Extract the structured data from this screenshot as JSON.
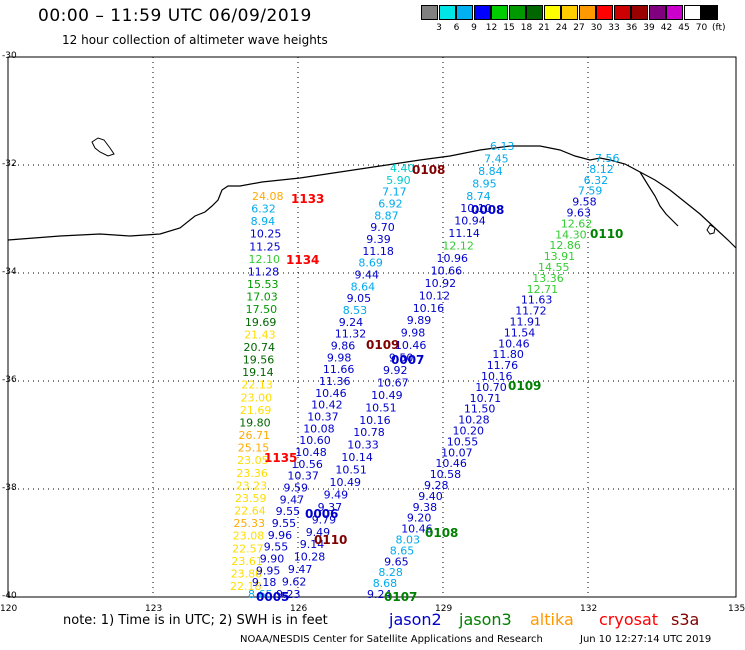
{
  "header": {
    "title": "00:00 – 11:59 UTC 06/09/2019",
    "subtitle": "12 hour collection of altimeter wave heights"
  },
  "color_scale": {
    "units": "(ft)",
    "colors": [
      "#808080",
      "#00e5e5",
      "#00b0f0",
      "#0000ff",
      "#00cc00",
      "#009900",
      "#006600",
      "#ffff00",
      "#ffcc00",
      "#ff9900",
      "#ff0000",
      "#cc0000",
      "#990000",
      "#800080",
      "#cc00cc",
      "#ffffff",
      "#000000"
    ],
    "labels": [
      "3",
      "6",
      "9",
      "12",
      "15",
      "18",
      "21",
      "24",
      "27",
      "30",
      "33",
      "36",
      "39",
      "42",
      "45",
      "70"
    ]
  },
  "axes": {
    "lat_labels": [
      "-30",
      "-32",
      "-34",
      "-36",
      "-38",
      "-40"
    ],
    "lon_labels": [
      "120",
      "123",
      "126",
      "129",
      "132",
      "135"
    ]
  },
  "time_labels": [
    {
      "text": "1133",
      "color": "#ff0000"
    },
    {
      "text": "1134",
      "color": "#ff0000"
    },
    {
      "text": "1135",
      "color": "#ff0000"
    },
    {
      "text": "0108",
      "color": "#800000"
    },
    {
      "text": "0109",
      "color": "#800000"
    },
    {
      "text": "0110",
      "color": "#800000"
    },
    {
      "text": "0008",
      "color": "#0000cc"
    },
    {
      "text": "0007",
      "color": "#0000cc"
    },
    {
      "text": "0006",
      "color": "#0000cc"
    },
    {
      "text": "0005",
      "color": "#0000cc"
    },
    {
      "text": "0110",
      "color": "#008000"
    },
    {
      "text": "0109",
      "color": "#008000"
    },
    {
      "text": "0108",
      "color": "#008000"
    },
    {
      "text": "0107",
      "color": "#008000"
    }
  ],
  "tracks": {
    "cryosat": [
      "24.08",
      "6.32",
      "8.94",
      "10.25",
      "11.25",
      "12.10",
      "11.28",
      "15.53",
      "17.03",
      "17.50",
      "19.69",
      "21.43",
      "20.74",
      "19.56",
      "19.14",
      "22.13",
      "23.00",
      "21.69",
      "19.80",
      "26.71",
      "25.15",
      "23.05",
      "23.36",
      "23.23",
      "23.59",
      "22.64",
      "25.33",
      "23.08",
      "22.57",
      "23.61",
      "23.80",
      "22.18"
    ],
    "s3a": [
      "4.40",
      "5.90",
      "7.17",
      "6.92",
      "8.87",
      "9.70",
      "9.39",
      "11.18",
      "8.69",
      "9.44",
      "8.64",
      "9.05",
      "8.53",
      "9.24",
      "11.32",
      "9.86",
      "9.98",
      "11.66",
      "11.36",
      "10.46",
      "10.42",
      "10.37",
      "10.08",
      "10.60",
      "10.48",
      "10.56",
      "10.37",
      "9.59",
      "9.47",
      "9.55",
      "9.55",
      "9.96",
      "9.55",
      "9.90",
      "9.95",
      "9.18",
      "8.65"
    ],
    "jason2a": [
      "6.13",
      "7.45",
      "8.84",
      "8.95",
      "8.74",
      "10.10",
      "10.94",
      "11.14",
      "12.12",
      "10.96",
      "10.66",
      "10.92",
      "10.12",
      "10.16",
      "9.89",
      "9.98",
      "10.46",
      "9.50",
      "9.92",
      "10.67",
      "10.49",
      "10.51",
      "10.16",
      "10.78",
      "10.33",
      "10.14",
      "10.51",
      "10.49",
      "9.49",
      "9.37",
      "9.79",
      "9.49",
      "9.14",
      "10.28",
      "9.47",
      "9.62",
      "9.23"
    ],
    "jason3": [
      "7.56",
      "8.12",
      "6.32",
      "7.59",
      "9.58",
      "9.63",
      "12.62",
      "14.30",
      "12.86",
      "13.91",
      "14.55",
      "13.36",
      "12.71",
      "11.63",
      "11.72",
      "11.91",
      "11.54",
      "10.46",
      "11.80",
      "11.76",
      "10.16",
      "10.70",
      "10.71",
      "11.50",
      "10.28",
      "10.20",
      "10.55",
      "10.07",
      "10.46",
      "10.58",
      "9.28",
      "9.40",
      "9.38",
      "9.20",
      "10.46",
      "8.03",
      "8.65",
      "9.65",
      "8.28",
      "8.68",
      "9.24"
    ]
  },
  "note": "note: 1) Time is in UTC; 2) SWH is in feet",
  "legend": [
    {
      "name": "jason2",
      "color": "#0000cc"
    },
    {
      "name": "jason3",
      "color": "#008000"
    },
    {
      "name": "altika",
      "color": "#ff9900"
    },
    {
      "name": "cryosat",
      "color": "#ff0000"
    },
    {
      "name": "s3a",
      "color": "#800000"
    }
  ],
  "footer": {
    "agency": "NOAA/NESDIS Center for Satellite Applications and Research",
    "timestamp": "Jun 10 12:27:14 UTC 2019"
  }
}
